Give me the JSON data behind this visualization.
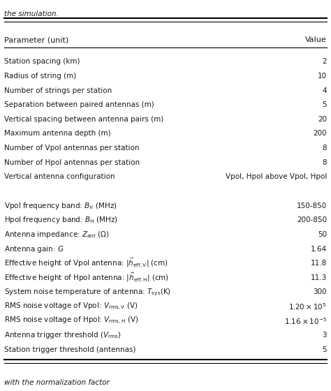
{
  "caption_top": "the simulation.",
  "header": [
    "Parameter (unit)",
    "Value"
  ],
  "rows": [
    [
      "Station spacing (km)",
      "2"
    ],
    [
      "Radius of string (m)",
      "10"
    ],
    [
      "Number of strings per station",
      "4"
    ],
    [
      "Separation between paired antennas (m)",
      "5"
    ],
    [
      "Vertical spacing between antenna pairs (m)",
      "20"
    ],
    [
      "Maximum antenna depth (m)",
      "200"
    ],
    [
      "Number of Vpol antennas per station",
      "8"
    ],
    [
      "Number of Hpol antennas per station",
      "8"
    ],
    [
      "Vertical antenna configuration",
      "Vpol, Hpol above Vpol, Hpol"
    ],
    [
      "",
      ""
    ],
    [
      "Vpol frequency band: $B_{\\mathrm{V}}$ (MHz)",
      "150-850"
    ],
    [
      "Hpol frequency band: $B_{\\mathrm{H}}$ (MHz)",
      "200-850"
    ],
    [
      "Antenna impedance: $Z_{\\mathrm{ant}}$ ($\\Omega$)",
      "50"
    ],
    [
      "Antenna gain: $G$",
      "1.64"
    ],
    [
      "Effective height of Vpol antenna: $|\\vec{h}_{\\mathrm{eff,V}}|$ (cm)",
      "11.8"
    ],
    [
      "Effective height of Hpol antenna: $|\\vec{h}_{\\mathrm{eff,H}}|$ (cm)",
      "11.3"
    ],
    [
      "System noise temperature of antenna: $T_{\\mathrm{sys}}$(K)",
      "300"
    ],
    [
      "RMS noise voltage of Vpol: $V_{\\mathrm{rms,V}}$ (V)",
      "$1.20 \\times 10^{5}$"
    ],
    [
      "RMS noise voltage of Hpol: $V_{\\mathrm{rms,H}}$ (V)",
      "$1.16 \\times 10^{-5}$"
    ],
    [
      "Antenna trigger threshold ($V_{\\mathrm{rms}}$)",
      "3"
    ],
    [
      "Station trigger threshold (antennas)",
      "5"
    ]
  ],
  "footer": "with the normalization factor",
  "bg_color": "#ffffff",
  "text_color": "#1a1a1a",
  "font_size": 7.5,
  "header_font_size": 8.0
}
